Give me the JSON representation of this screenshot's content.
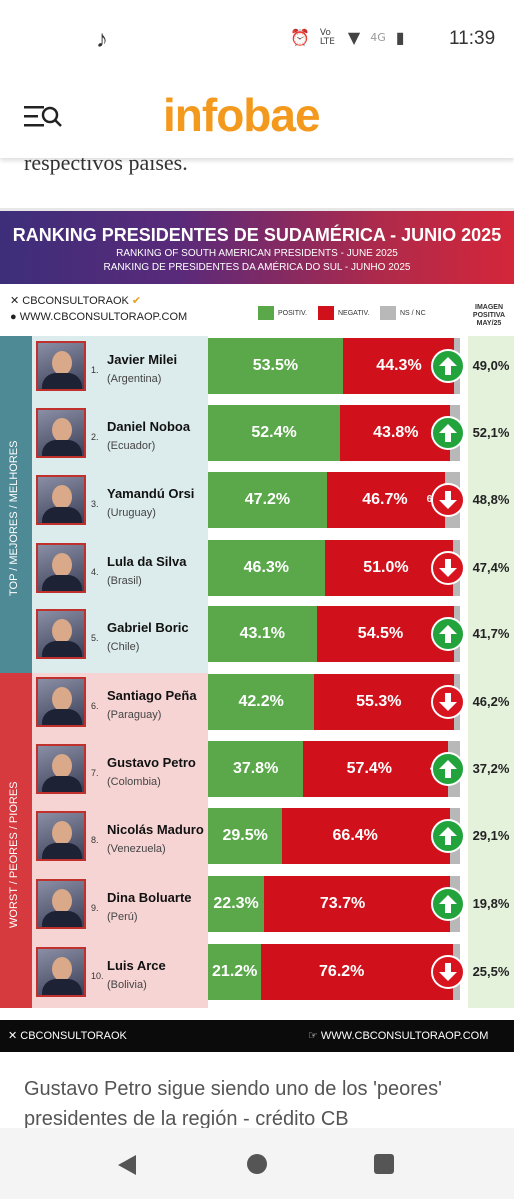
{
  "status": {
    "time": "11:39",
    "network": "4G",
    "volte": "Vo LTE"
  },
  "app": {
    "logo": "infobae",
    "article_fragment": "respectivos países."
  },
  "infographic": {
    "title": "RANKING PRESIDENTES DE SUDAMÉRICA - JUNIO 2025",
    "subtitle_en": "RANKING OF SOUTH AMERICAN PRESIDENTS -  JUNE 2025",
    "subtitle_pt": "RANKING DE PRESIDENTES DA AMÉRICA DO SUL - JUNHO 2025",
    "brand_handle": "CBCONSULTORAOK",
    "brand_site": "WWW.CBCONSULTORAOP.COM",
    "legend": {
      "positive": "POSITIV.",
      "negative": "NEGATIV.",
      "ns": "NS / NC",
      "image_header": "IMAGEN POSITIVA MAY/25"
    },
    "side_top": "TOP / MEJORES / MELHORES",
    "side_worst": "WORST / PEORES / PIORES",
    "footer_handle": "CBCONSULTORAOK",
    "footer_site": "WWW.CBCONSULTORAOP.COM",
    "colors": {
      "positive": "#5aa84a",
      "negative": "#d0111b",
      "ns": "#b8b8b8",
      "top_band": "#4e8a96",
      "worst_band": "#d63a3f",
      "logo": "#f39a1e"
    }
  },
  "chart_data": {
    "type": "table",
    "rows": [
      {
        "rank": "1.",
        "name": "Javier Milei",
        "country": "(Argentina)",
        "positive": 53.5,
        "positive_label": "53.5%",
        "negative": 44.3,
        "negative_label": "44.3%",
        "ns": 2.2,
        "ns_label": "2.2",
        "trend": "up",
        "may_image": "49,0%"
      },
      {
        "rank": "2.",
        "name": "Daniel Noboa",
        "country": "(Ecuador)",
        "positive": 52.4,
        "positive_label": "52.4%",
        "negative": 43.8,
        "negative_label": "43.8%",
        "ns": 3.8,
        "ns_label": "3.8",
        "trend": "up",
        "may_image": "52,1%"
      },
      {
        "rank": "3.",
        "name": "Yamandú Orsi",
        "country": "(Uruguay)",
        "positive": 47.2,
        "positive_label": "47.2%",
        "negative": 46.7,
        "negative_label": "46.7%",
        "ns": 6.1,
        "ns_label": "6.1",
        "trend": "down",
        "may_image": "48,8%"
      },
      {
        "rank": "4.",
        "name": "Lula da Silva",
        "country": "(Brasil)",
        "positive": 46.3,
        "positive_label": "46.3%",
        "negative": 51.0,
        "negative_label": "51.0%",
        "ns": 2.7,
        "ns_label": "2.7",
        "trend": "down",
        "may_image": "47,4%"
      },
      {
        "rank": "5.",
        "name": "Gabriel Boric",
        "country": "(Chile)",
        "positive": 43.1,
        "positive_label": "43.1%",
        "negative": 54.5,
        "negative_label": "54.5%",
        "ns": 2.4,
        "ns_label": "2.4",
        "trend": "up",
        "may_image": "41,7%"
      },
      {
        "rank": "6.",
        "name": "Santiago Peña",
        "country": "(Paraguay)",
        "positive": 42.2,
        "positive_label": "42.2%",
        "negative": 55.3,
        "negative_label": "55.3%",
        "ns": 2.5,
        "ns_label": "2.5",
        "trend": "down",
        "may_image": "46,2%"
      },
      {
        "rank": "7.",
        "name": "Gustavo Petro",
        "country": "(Colombia)",
        "positive": 37.8,
        "positive_label": "37.8%",
        "negative": 57.4,
        "negative_label": "57.4%",
        "ns": 4.8,
        "ns_label": "4.8",
        "trend": "up",
        "may_image": "37,2%"
      },
      {
        "rank": "8.",
        "name": "Nicolás Maduro",
        "country": "(Venezuela)",
        "positive": 29.5,
        "positive_label": "29.5%",
        "negative": 66.4,
        "negative_label": "66.4%",
        "ns": 4.1,
        "ns_label": "4.1",
        "trend": "up",
        "may_image": "29,1%"
      },
      {
        "rank": "9.",
        "name": "Dina Boluarte",
        "country": "(Perú)",
        "positive": 22.3,
        "positive_label": "22.3%",
        "negative": 73.7,
        "negative_label": "73.7%",
        "ns": 4.0,
        "ns_label": "4.0",
        "trend": "up",
        "may_image": "19,8%"
      },
      {
        "rank": "10.",
        "name": "Luis Arce",
        "country": "(Bolivia)",
        "positive": 21.2,
        "positive_label": "21.2%",
        "negative": 76.2,
        "negative_label": "76.2%",
        "ns": 2.6,
        "ns_label": "2.6",
        "trend": "down",
        "may_image": "25,5%"
      }
    ]
  },
  "caption": "Gustavo Petro sigue siendo uno de los 'peores' presidentes de la región - crédito CB"
}
